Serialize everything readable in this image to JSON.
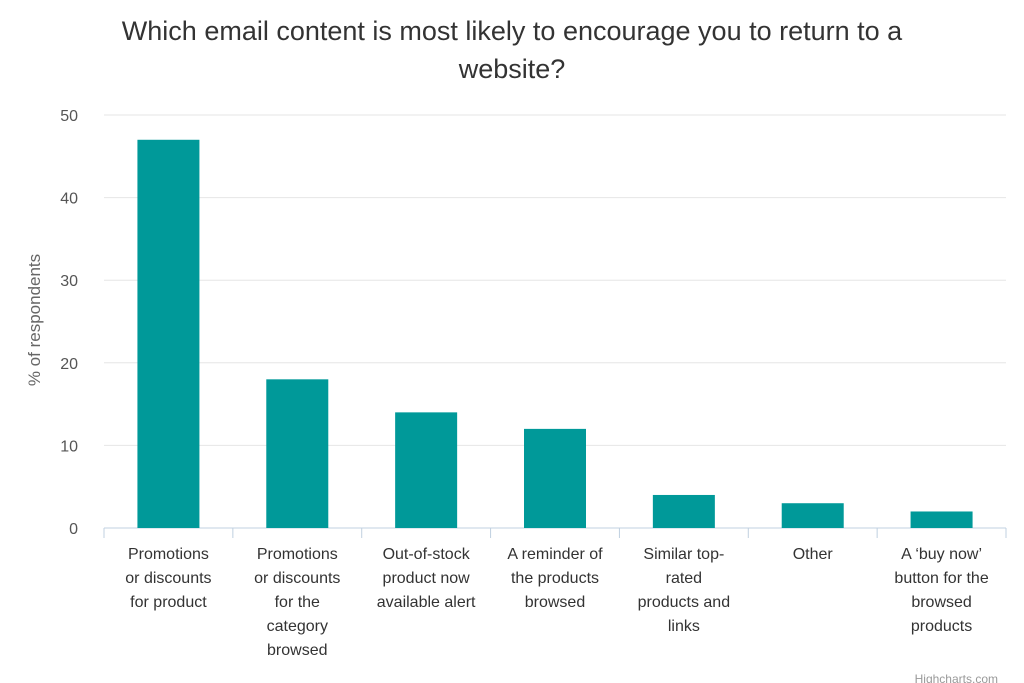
{
  "chart_data": {
    "type": "bar",
    "title": "Which email content is most likely to encourage you to return to a website?",
    "title_lines": [
      "Which email content is most likely to encourage you to return to a",
      "website?"
    ],
    "xlabel": "",
    "ylabel": "% of respondents",
    "ylim": [
      0,
      50
    ],
    "yticks": [
      0,
      10,
      20,
      30,
      40,
      50
    ],
    "grid": true,
    "bar_color": "#009999",
    "categories": [
      "Promotions or discounts for product",
      "Promotions or discounts for the category browsed",
      "Out-of-stock product now available alert",
      "A reminder of the products browsed",
      "Similar top-rated products and links",
      "Other",
      "A ‘buy now’ button for the browsed products"
    ],
    "category_lines": [
      [
        "Promotions",
        "or discounts",
        "for product"
      ],
      [
        "Promotions",
        "or discounts",
        "for the",
        "category",
        "browsed"
      ],
      [
        "Out-of-stock",
        "product now",
        "available alert"
      ],
      [
        "A reminder of",
        "the products",
        "browsed"
      ],
      [
        "Similar top-",
        "rated",
        "products and",
        "links"
      ],
      [
        "Other"
      ],
      [
        "A ‘buy now’",
        "button for the",
        "browsed",
        "products"
      ]
    ],
    "values": [
      47,
      18,
      14,
      12,
      4,
      3,
      2
    ],
    "credit": "Highcharts.com"
  }
}
